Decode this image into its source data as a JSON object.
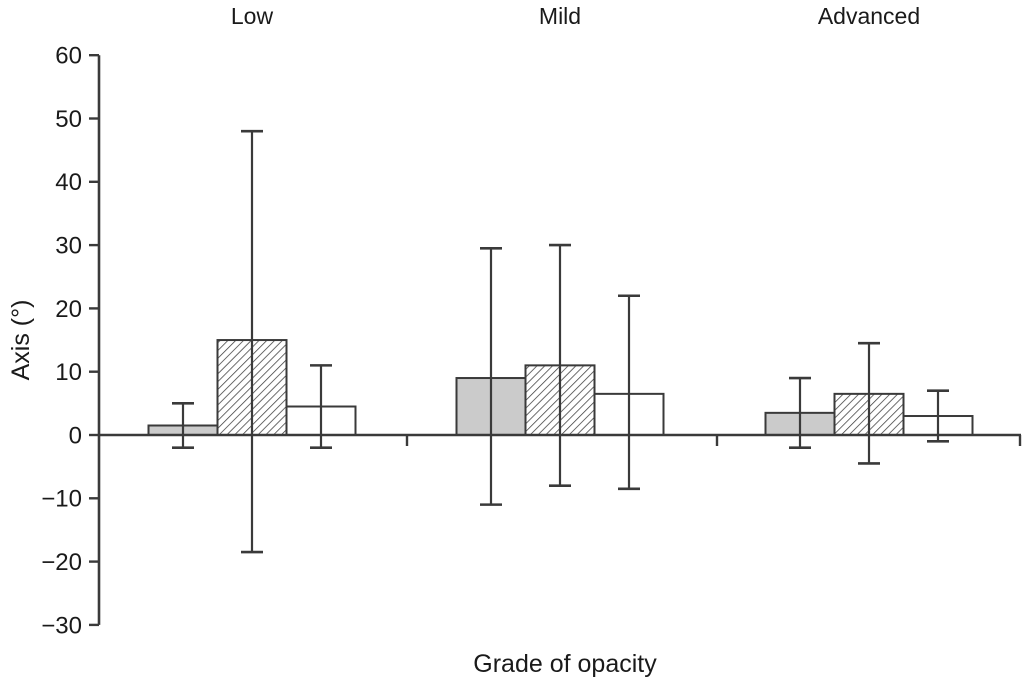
{
  "figure": {
    "background": "#ffffff",
    "line_color": "#3a3a3a",
    "text_color": "#1a1a1a"
  },
  "chart_data": {
    "type": "bar",
    "title": "",
    "xlabel": "Grade of opacity",
    "ylabel": "Axis (°)",
    "ylim": [
      -30,
      60
    ],
    "ytick_step": 10,
    "grid": false,
    "legend": "none",
    "error_bars": "asymmetric whiskers with caps; values below are whisker endpoints",
    "categories": [
      "Low",
      "Mild",
      "Advanced"
    ],
    "series": [
      {
        "key": "gray",
        "name": "Gray solid bars",
        "fill": "#cbcbcb",
        "pattern": "solid",
        "values": [
          1.5,
          9,
          3.5
        ],
        "whisker_top": [
          5,
          29.5,
          9
        ],
        "whisker_bottom": [
          -2,
          -11,
          -2
        ]
      },
      {
        "key": "hatched",
        "name": "Diagonal hatched bars",
        "fill": "#ffffff",
        "pattern": "diagonal-hatch",
        "values": [
          15,
          11,
          6.5
        ],
        "whisker_top": [
          48,
          30,
          14.5
        ],
        "whisker_bottom": [
          -18.5,
          -8,
          -4.5
        ]
      },
      {
        "key": "white",
        "name": "White open bars",
        "fill": "#ffffff",
        "pattern": "solid",
        "values": [
          4.5,
          6.5,
          3
        ],
        "whisker_top": [
          11,
          22,
          7
        ],
        "whisker_bottom": [
          -2,
          -8.5,
          -1
        ]
      }
    ]
  }
}
